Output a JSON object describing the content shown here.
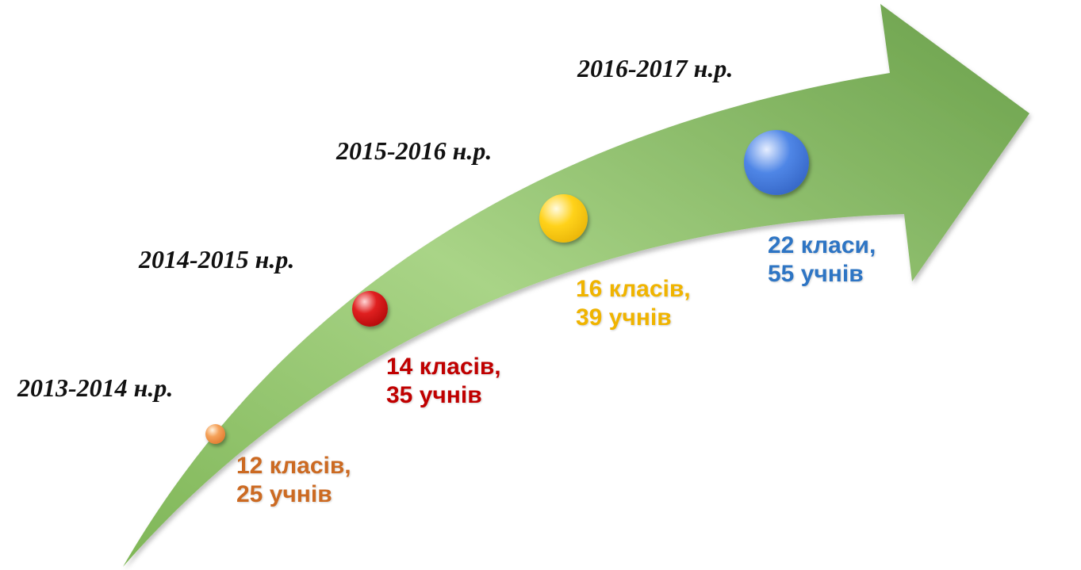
{
  "milestones": [
    {
      "year": "2013-2014 н.р.",
      "classes": "12 класів,",
      "students": "25 учнів",
      "color": "#cc6a22",
      "bead_color": "#f0893a"
    },
    {
      "year": "2014-2015 н.р.",
      "classes": "14 класів,",
      "students": "35 учнів",
      "color": "#c00000",
      "bead_color": "#d40000"
    },
    {
      "year": "2015-2016 н.р.",
      "classes": "16 класів,",
      "students": "39 учнів",
      "color": "#f0b400",
      "bead_color": "#ffd000"
    },
    {
      "year": "2016-2017 н.р.",
      "classes": "22 класи,",
      "students": "55 учнів",
      "color": "#2e75c4",
      "bead_color": "#3f6fd6"
    }
  ],
  "arrow_color": "#8fc46a"
}
